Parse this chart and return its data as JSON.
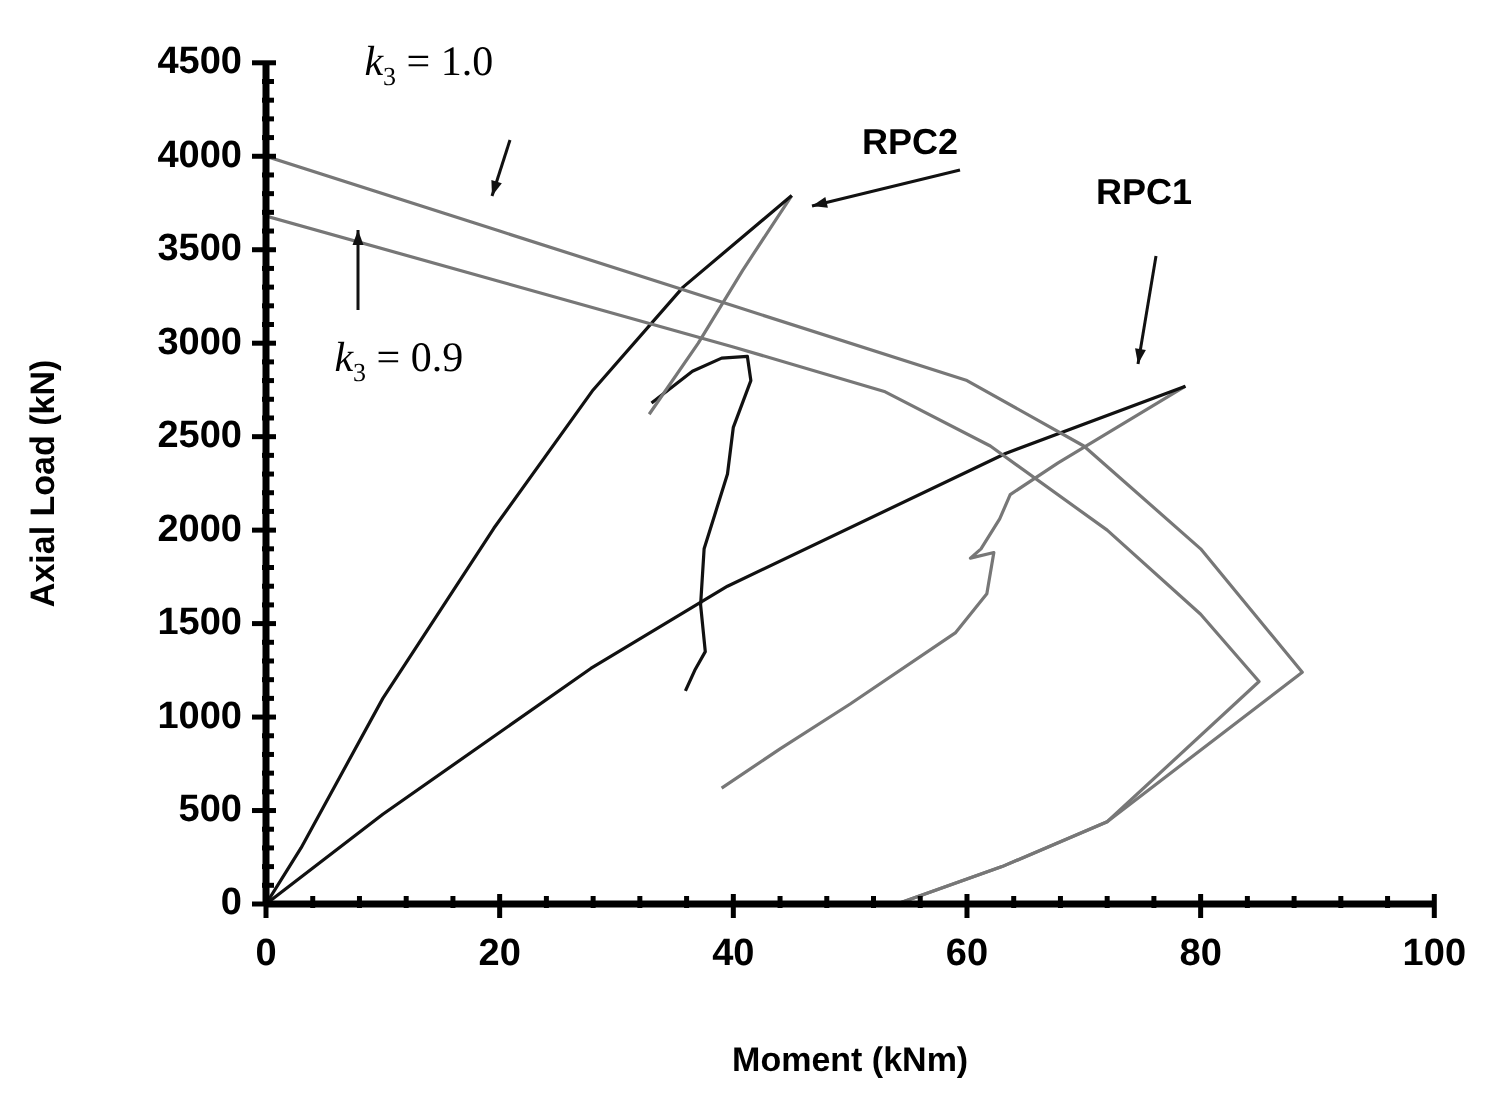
{
  "chart_data": {
    "type": "line",
    "xlabel": "Moment (kNm)",
    "ylabel": "Axial Load (kN)",
    "marker": "none",
    "grid": false,
    "legend": false,
    "xlim": [
      0,
      100
    ],
    "ylim": [
      0,
      4500
    ],
    "xticks": [
      0,
      {
        "value": 4,
        "label": null
      },
      {
        "value": 8,
        "label": null
      },
      {
        "value": 12,
        "label": null
      },
      {
        "value": 16,
        "label": null
      },
      20,
      {
        "value": 24,
        "label": null
      },
      {
        "value": 28,
        "label": null
      },
      {
        "value": 32,
        "label": null
      },
      {
        "value": 36,
        "label": null
      },
      40,
      {
        "value": 44,
        "label": null
      },
      {
        "value": 48,
        "label": null
      },
      {
        "value": 52,
        "label": null
      },
      {
        "value": 56,
        "label": null
      },
      60,
      {
        "value": 64,
        "label": null
      },
      {
        "value": 68,
        "label": null
      },
      {
        "value": 72,
        "label": null
      },
      {
        "value": 76,
        "label": null
      },
      80,
      {
        "value": 84,
        "label": null
      },
      {
        "value": 88,
        "label": null
      },
      {
        "value": 92,
        "label": null
      },
      {
        "value": 96,
        "label": null
      },
      100
    ],
    "yticks": [
      0,
      {
        "value": 100,
        "label": null
      },
      {
        "value": 200,
        "label": null
      },
      {
        "value": 300,
        "label": null
      },
      {
        "value": 400,
        "label": null
      },
      500,
      {
        "value": 600,
        "label": null
      },
      {
        "value": 700,
        "label": null
      },
      {
        "value": 800,
        "label": null
      },
      {
        "value": 900,
        "label": null
      },
      1000,
      {
        "value": 1100,
        "label": null
      },
      {
        "value": 1200,
        "label": null
      },
      {
        "value": 1300,
        "label": null
      },
      {
        "value": 1400,
        "label": null
      },
      1500,
      {
        "value": 1600,
        "label": null
      },
      {
        "value": 1700,
        "label": null
      },
      {
        "value": 1800,
        "label": null
      },
      {
        "value": 1900,
        "label": null
      },
      2000,
      {
        "value": 2100,
        "label": null
      },
      {
        "value": 2200,
        "label": null
      },
      {
        "value": 2300,
        "label": null
      },
      {
        "value": 2400,
        "label": null
      },
      2500,
      {
        "value": 2600,
        "label": null
      },
      {
        "value": 2700,
        "label": null
      },
      {
        "value": 2800,
        "label": null
      },
      {
        "value": 2900,
        "label": null
      },
      3000,
      {
        "value": 3100,
        "label": null
      },
      {
        "value": 3200,
        "label": null
      },
      {
        "value": 3300,
        "label": null
      },
      {
        "value": 3400,
        "label": null
      },
      3500,
      {
        "value": 3600,
        "label": null
      },
      {
        "value": 3700,
        "label": null
      },
      {
        "value": 3800,
        "label": null
      },
      {
        "value": 3900,
        "label": null
      },
      4000,
      {
        "value": 4100,
        "label": null
      },
      {
        "value": 4200,
        "label": null
      },
      {
        "value": 4300,
        "label": null
      },
      {
        "value": 4400,
        "label": null
      },
      4500
    ],
    "series": [
      {
        "color": "#777777",
        "x": [
          0,
          20,
          40,
          60,
          70,
          80,
          88.7,
          72,
          63,
          54
        ],
        "values": [
          4000,
          3600,
          3200,
          2800,
          2450,
          1900,
          1240,
          440,
          200,
          0
        ]
      },
      {
        "color": "#777777",
        "x": [
          0,
          20,
          40,
          53,
          62,
          72,
          80,
          85,
          72,
          63,
          54
        ],
        "values": [
          3680,
          3330,
          2980,
          2740,
          2450,
          2000,
          1550,
          1190,
          440,
          200,
          0
        ]
      },
      {
        "color": "#111111",
        "x": [
          0,
          3,
          10,
          19.5,
          28,
          35.7,
          45
        ],
        "values": [
          0,
          300,
          1100,
          2010,
          2750,
          3300,
          3790
        ]
      },
      {
        "color": "#777777",
        "x": [
          45,
          40.8,
          37,
          32.8
        ],
        "values": [
          3790,
          3390,
          3000,
          2620
        ]
      },
      {
        "color": "#111111",
        "x": [
          33,
          36.5,
          39,
          41.2,
          41.5,
          40,
          39.5,
          38.5,
          37.5,
          37.2,
          37.6,
          36.7,
          35.9
        ],
        "values": [
          2680,
          2850,
          2920,
          2930,
          2800,
          2550,
          2300,
          2100,
          1900,
          1600,
          1350,
          1250,
          1140
        ]
      },
      {
        "color": "#111111",
        "x": [
          0,
          10,
          27.8,
          39.5,
          63.3,
          78.7
        ],
        "values": [
          0,
          480,
          1260,
          1700,
          2410,
          2770
        ]
      },
      {
        "color": "#777777",
        "x": [
          78.7,
          67.8,
          63.7,
          62.8,
          61.2,
          60.3,
          62.3,
          61.7,
          59,
          50,
          44,
          39
        ],
        "values": [
          2770,
          2360,
          2190,
          2060,
          1900,
          1850,
          1880,
          1660,
          1450,
          1070,
          830,
          620
        ]
      }
    ],
    "annotations": [
      "k$_{3}$ = 1.0",
      "k$_{3}$ = 0.9",
      "RPC2",
      "RPC1"
    ]
  }
}
